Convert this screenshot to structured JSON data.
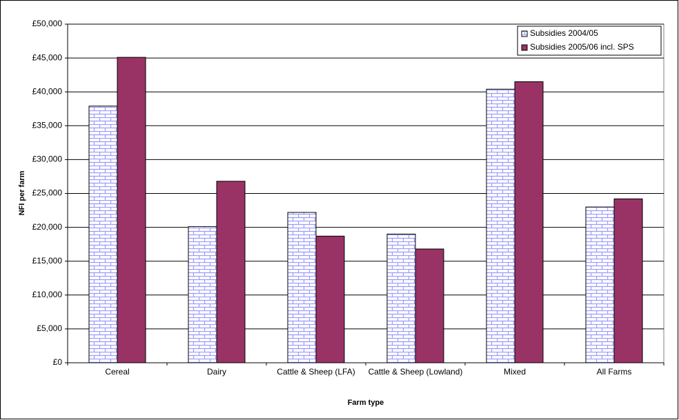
{
  "chart_data": {
    "type": "bar",
    "y_label": "NFI per farm",
    "x_label": "Farm type",
    "categories": [
      "Cereal",
      "Dairy",
      "Cattle & Sheep (LFA)",
      "Cattle & Sheep (Lowland)",
      "Mixed",
      "All Farms"
    ],
    "series": [
      {
        "name": "Subsidies 2004/05",
        "color": "#9999ff",
        "values": [
          37900,
          20100,
          22200,
          19000,
          40400,
          23000
        ]
      },
      {
        "name": "Subsidies 2005/06 incl. SPS",
        "color": "#993366",
        "values": [
          45100,
          26800,
          18700,
          16800,
          41500,
          24200
        ]
      }
    ],
    "ylim": [
      0,
      50000
    ],
    "yticks": [
      {
        "value": 0,
        "label": "£0"
      },
      {
        "value": 5000,
        "label": "£5,000"
      },
      {
        "value": 10000,
        "label": "£10,000"
      },
      {
        "value": 15000,
        "label": "£15,000"
      },
      {
        "value": 20000,
        "label": "£20,000"
      },
      {
        "value": 25000,
        "label": "£25,000"
      },
      {
        "value": 30000,
        "label": "£30,000"
      },
      {
        "value": 35000,
        "label": "£35,000"
      },
      {
        "value": 40000,
        "label": "£40,000"
      },
      {
        "value": 45000,
        "label": "£45,000"
      },
      {
        "value": 50000,
        "label": "£50,000"
      }
    ],
    "grid": true,
    "legend": "top-right"
  }
}
